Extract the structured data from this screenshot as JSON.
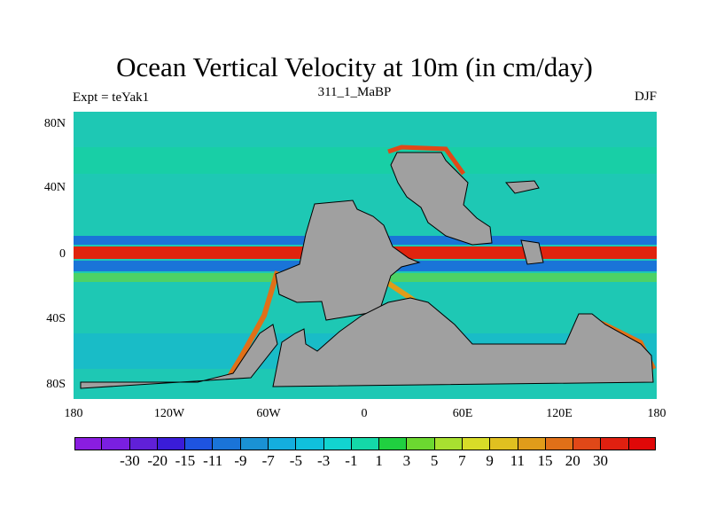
{
  "title": "Ocean Vertical Velocity at 10m (in cm/day)",
  "left_label": "Expt = teYak1",
  "center_label": "311_1_MaBP",
  "right_label": "DJF",
  "y_ticks": [
    "80N",
    "40N",
    "0",
    "40S",
    "80S"
  ],
  "x_ticks": [
    "180",
    "120W",
    "60W",
    "0",
    "60E",
    "120E",
    "180"
  ],
  "colorbar": {
    "colors": [
      "#8a1de0",
      "#7a1fe0",
      "#6020d8",
      "#3a1cd8",
      "#1e54e0",
      "#1a74d8",
      "#1a92d4",
      "#14aede",
      "#10c0dc",
      "#12d4d0",
      "#14d8a8",
      "#20d040",
      "#6cd830",
      "#a8e030",
      "#d8dc28",
      "#e0c020",
      "#e09c1a",
      "#e07018",
      "#e04818",
      "#e02010",
      "#e00808"
    ],
    "labels": [
      "-30",
      "-20",
      "-15",
      "-11",
      "-9",
      "-7",
      "-5",
      "-3",
      "-1",
      "1",
      "3",
      "5",
      "7",
      "9",
      "11",
      "15",
      "20",
      "30"
    ]
  },
  "map_colors": {
    "land": "#a0a0a0",
    "ocean_base": "#1ec8b4",
    "upwelling": "#e0240e",
    "downwelling": "#1a54e0"
  }
}
